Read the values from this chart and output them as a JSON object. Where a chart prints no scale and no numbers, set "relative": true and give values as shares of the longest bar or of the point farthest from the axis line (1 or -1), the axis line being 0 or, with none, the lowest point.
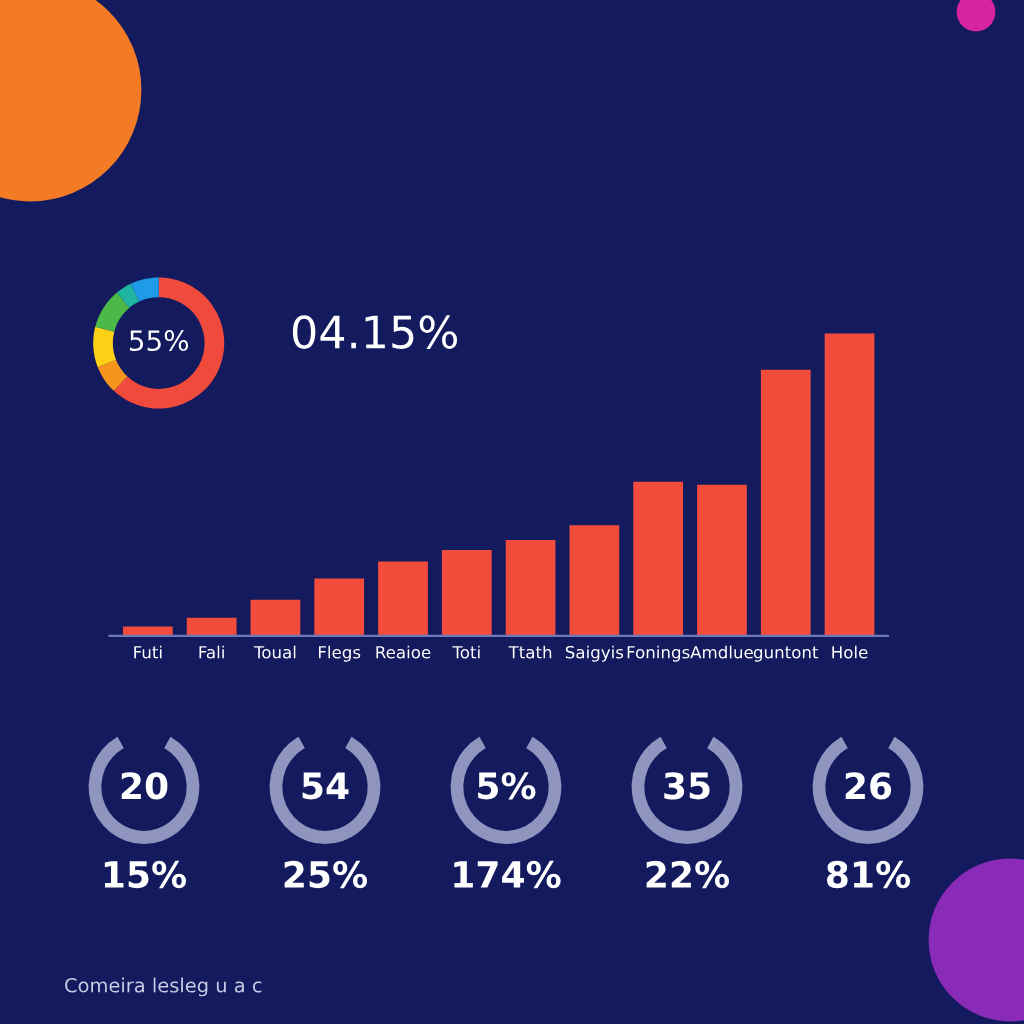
{
  "chart_data": [
    {
      "type": "donut",
      "categories": [
        null,
        null,
        null,
        null,
        null,
        null
      ],
      "values": [
        62,
        7,
        10,
        10,
        4,
        7
      ],
      "colors": [
        "#f04a3c",
        "#f7941d",
        "#fcd116",
        "#4cb848",
        "#1fb5a0",
        "#1e9be9"
      ],
      "annotations": [
        "55%",
        "04.15%"
      ]
    },
    {
      "type": "bar",
      "relative": true,
      "color": "#f24c3d",
      "categories": [
        "Futi",
        "Fali",
        "Toual",
        "Flegs",
        "Reaioe",
        "Toti",
        "Ttath",
        "Saigyis",
        "Fonings",
        "Amdlue",
        "guntont",
        "Hole"
      ],
      "values": [
        0.031,
        0.06,
        0.12,
        0.19,
        0.246,
        0.284,
        0.317,
        0.366,
        0.51,
        0.5,
        0.88,
        1.0
      ]
    },
    {
      "type": "other",
      "annotations": [
        "20",
        "15%",
        "54",
        "25%",
        "5%",
        "174%",
        "35",
        "22%",
        "26",
        "81%",
        "Comeira lesleg u a c"
      ]
    }
  ]
}
